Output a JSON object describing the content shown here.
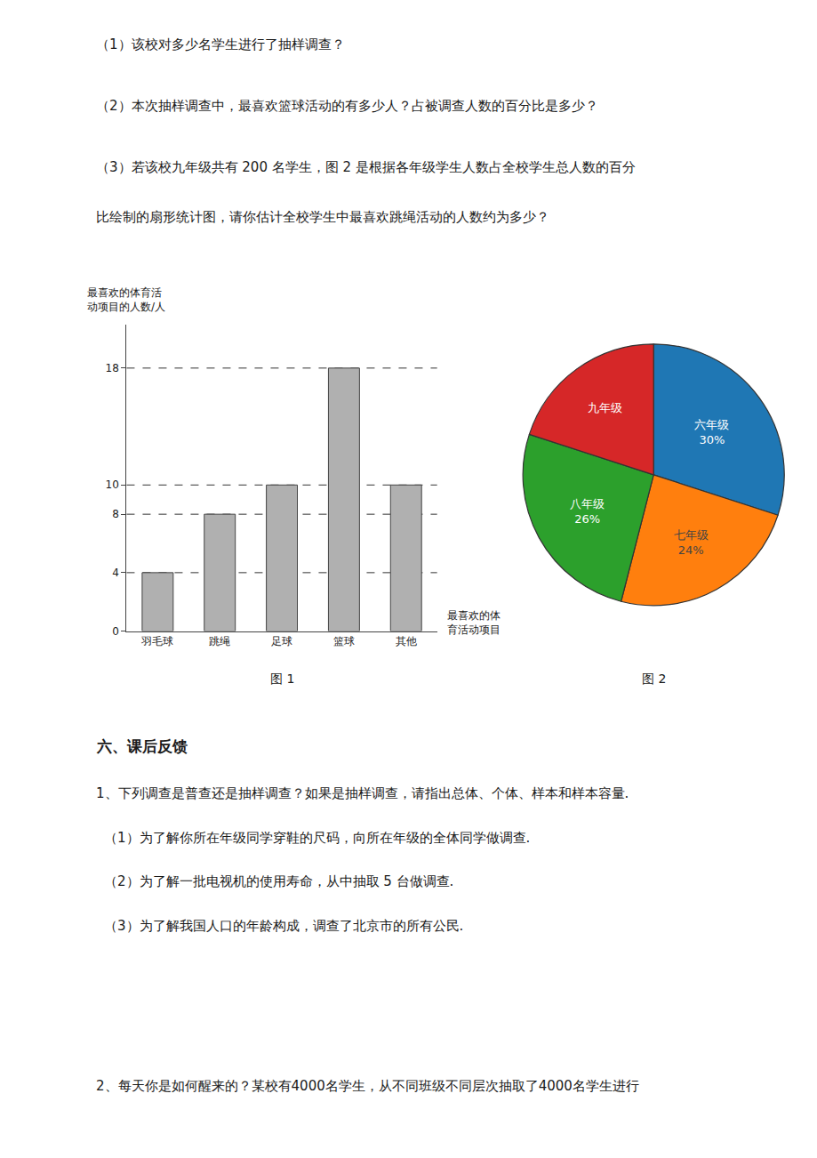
{
  "chart_data": [
    {
      "type": "bar",
      "title": "图 1",
      "annotations": [
        "（1）该校对多少名学生进行了抽样调查？",
        "（2）本次抽样调查中，最喜欢篮球活动的有多少人？占被调查人数的百分比是多少？",
        "（3）若该校九年级共有 200 名学生，图 2 是根据各年级学生人数占全校学生总人数的百分",
        "比绘制的扇形统计图，请你估计全校学生中最喜欢跳绳活动的人数约为多少？",
        "六、课后反馈",
        "1、下列调查是普查还是抽样调查？如果是抽样调查，请指出总体、个体、样本和样本容量.",
        "（1）为了解你所在年级同学穿鞋的尺码，向所在年级的全体同学做调查.",
        "（2）为了解一批电视机的使用寿命，从中抽取 5 台做调查.",
        "（3）为了解我国人口的年龄构成，调查了北京市的所有公民.",
        "2、每天你是如何醒来的？某校有4000名学生，从不同班级不同层次抽取了4000名学生进行"
      ],
      "categories": [
        "羽毛球",
        "跳绳",
        "足球",
        "篮球",
        "其他"
      ],
      "values": [
        4,
        8,
        10,
        18,
        10
      ],
      "color": "#b0b0b0",
      "ylabel": "最喜欢的体育活\n动项目的人数/人",
      "xlabel": "最喜欢的体\n育活动项目",
      "ylim": [
        0,
        21
      ],
      "yticks": [
        0,
        4,
        8,
        10,
        18
      ],
      "hlines": [
        4,
        8,
        10,
        18
      ],
      "grid": false
    },
    {
      "type": "pie",
      "title": "图 2",
      "categories": [
        "六年级",
        "七年级",
        "八年级",
        "九年级"
      ],
      "values": [
        30,
        24,
        26,
        20
      ],
      "value_labels": [
        "30%",
        "24%",
        "26%",
        null
      ]
    }
  ]
}
